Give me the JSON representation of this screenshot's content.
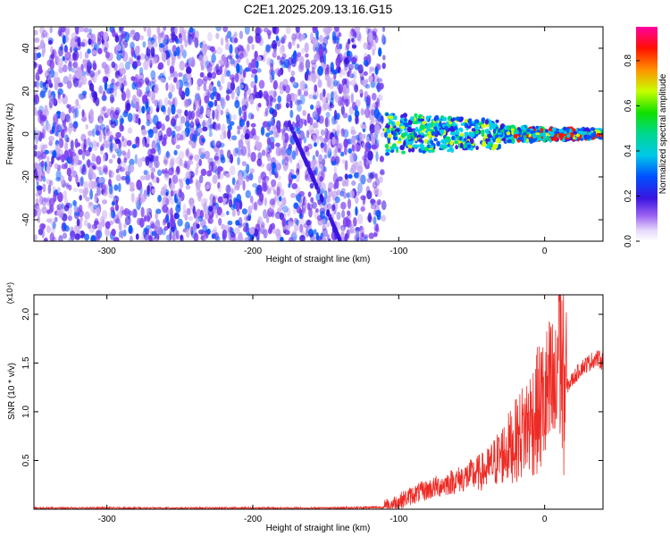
{
  "title": "C2E1.2025.209.13.16.G15",
  "chart_data": [
    {
      "type": "heatmap",
      "xlabel": "Height of straight line (km)",
      "ylabel": "Frequency (Hz)",
      "xlim": [
        -350,
        40
      ],
      "ylim": [
        -50,
        50
      ],
      "xticks": [
        -300,
        -200,
        -100,
        0
      ],
      "yticks": [
        -40,
        -20,
        0,
        20,
        40
      ],
      "colorbar": {
        "label": "Normalized spectral amplitude",
        "range": [
          0.0,
          0.95
        ],
        "ticks": [
          0.0,
          0.2,
          0.4,
          0.6,
          0.8
        ]
      },
      "colormap": [
        "#ffffff",
        "#c7a8f0",
        "#7a3cf0",
        "#3a14e0",
        "#0050ff",
        "#00d0e8",
        "#00e060",
        "#d8ff00",
        "#ff9000",
        "#ff1000",
        "#ff00a0"
      ],
      "features": {
        "noise_region_x": [
          -350,
          -110
        ],
        "signal_band_x": [
          -110,
          40
        ],
        "signal_band_center_hz": 0,
        "signal_band_halfwidth_hz": [
          6,
          2
        ]
      }
    },
    {
      "type": "line",
      "xlabel": "Height of straight line (km)",
      "ylabel": "SNR (10 * v/v)",
      "y_multiplier": "(x10⁴)",
      "xlim": [
        -350,
        40
      ],
      "ylim": [
        0,
        2.2
      ],
      "xticks": [
        -300,
        -200,
        -100,
        0
      ],
      "yticks": [
        0.5,
        1.0,
        1.5,
        2.0
      ],
      "series_color": "#ee2a24",
      "series": [
        {
          "x": [
            -350,
            -300,
            -250,
            -200,
            -150,
            -110,
            -100,
            -90,
            -80,
            -70,
            -60,
            -50,
            -40,
            -30,
            -20,
            -15,
            -10,
            -5,
            0,
            5,
            8,
            10,
            12,
            15,
            20,
            25,
            30,
            35,
            40
          ],
          "y": [
            0.01,
            0.01,
            0.01,
            0.01,
            0.01,
            0.02,
            0.08,
            0.15,
            0.2,
            0.25,
            0.3,
            0.35,
            0.4,
            0.55,
            0.7,
            0.8,
            0.9,
            1.0,
            1.1,
            1.2,
            1.1,
            2.2,
            1.3,
            1.25,
            1.35,
            1.45,
            1.5,
            1.55,
            1.52
          ]
        }
      ]
    }
  ]
}
